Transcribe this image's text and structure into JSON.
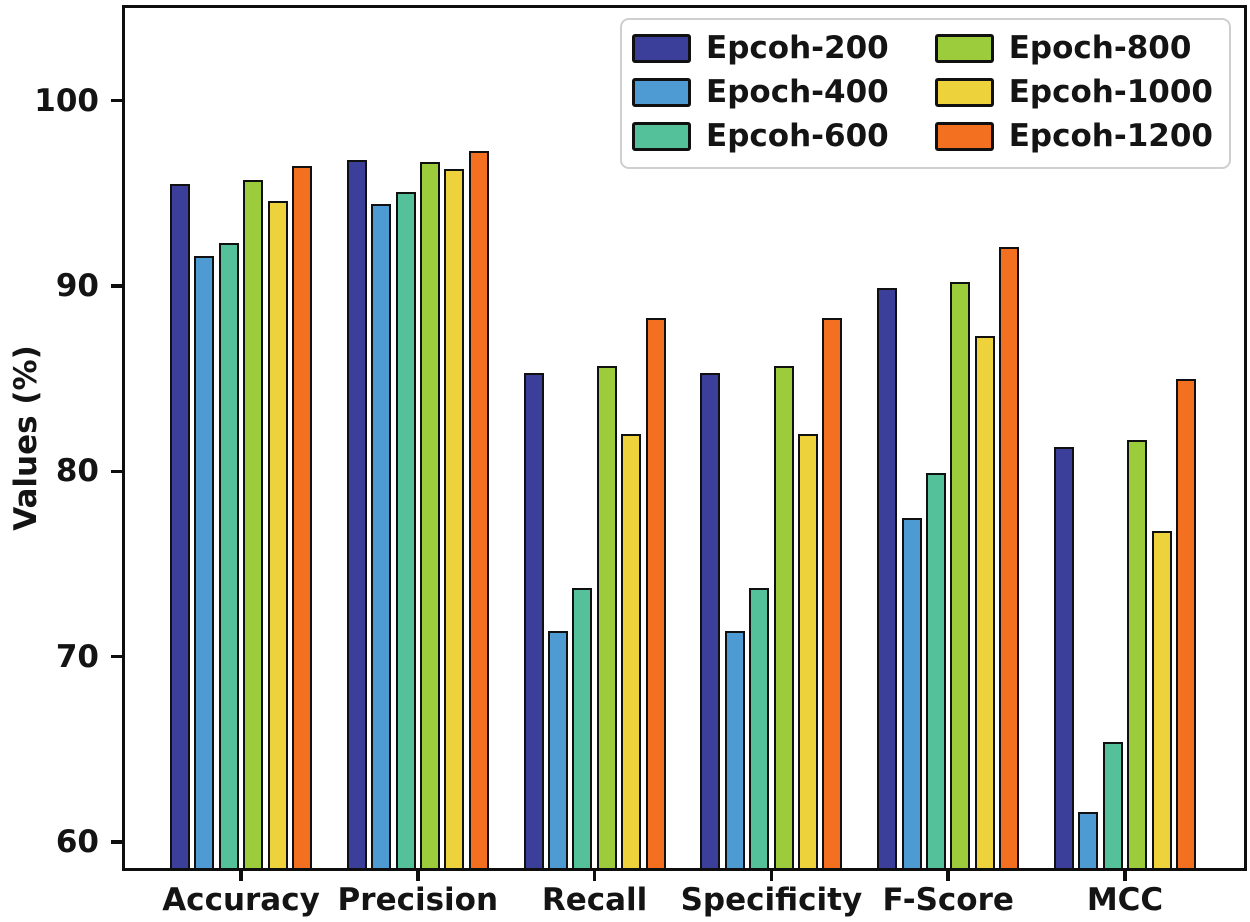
{
  "chart_data": {
    "type": "bar",
    "title": "",
    "xlabel": "",
    "ylabel": "Values (%)",
    "categories": [
      "Accuracy",
      "Precision",
      "Recall",
      "Specificity",
      "F-Score",
      "MCC"
    ],
    "series": [
      {
        "name": "Epcoh-200",
        "color": "#3c3f99",
        "values": [
          95.5,
          96.8,
          85.3,
          85.3,
          89.9,
          81.3
        ]
      },
      {
        "name": "Epoch-400",
        "color": "#4e9bd4",
        "values": [
          91.6,
          94.4,
          71.4,
          71.4,
          77.5,
          61.6
        ]
      },
      {
        "name": "Epcoh-600",
        "color": "#55c19a",
        "values": [
          92.3,
          95.1,
          73.7,
          73.7,
          79.9,
          65.4
        ]
      },
      {
        "name": "Epoch-800",
        "color": "#9ccb3b",
        "values": [
          95.7,
          96.7,
          85.7,
          85.7,
          90.2,
          81.7
        ]
      },
      {
        "name": "Epcoh-1000",
        "color": "#eed23c",
        "values": [
          94.6,
          96.3,
          82.0,
          82.0,
          87.3,
          76.8
        ]
      },
      {
        "name": "Epcoh-1200",
        "color": "#f2701f",
        "values": [
          96.5,
          97.3,
          88.3,
          88.3,
          92.1,
          85.0
        ]
      }
    ],
    "ylim": [
      58.6,
      105.0
    ],
    "yticks": [
      60,
      70,
      80,
      90,
      100
    ],
    "grid": false,
    "legend_position": "upper right",
    "legend_columns": 2,
    "legend_column_major_order": [
      0,
      3,
      1,
      4,
      2,
      5
    ]
  },
  "style_colors": {
    "spine": "#0e0e0e",
    "bar_outline": "#101010",
    "text": "#141414",
    "legend_border": "#cfcfcf",
    "background": "#ffffff"
  }
}
